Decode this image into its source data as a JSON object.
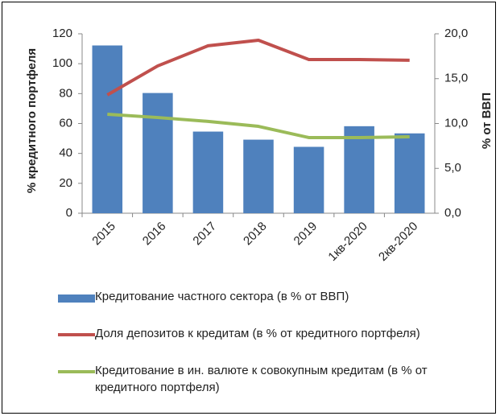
{
  "chart_data": {
    "type": "bar",
    "categories": [
      "2015",
      "2016",
      "2017",
      "2018",
      "2019",
      "1кв-2020",
      "2кв-2020"
    ],
    "series": [
      {
        "name": "Кредитование частного сектора (в % от ВВП)",
        "type": "bar",
        "axis": "y2",
        "color": "#4f81bd",
        "values": [
          18.7,
          13.4,
          9.1,
          8.2,
          7.4,
          9.7,
          8.9
        ]
      },
      {
        "name": "Доля депозитов к кредитам (в % от кредитного портфеля)",
        "type": "line",
        "axis": "y",
        "color": "#c0504d",
        "values": [
          79.1,
          98.5,
          112,
          115.7,
          102.8,
          102.8,
          102.3
        ]
      },
      {
        "name": "Кредитование в ин. валюте к совокупным кредитам (в % от кредитного портфеля)",
        "type": "line",
        "axis": "y",
        "color": "#9bbb59",
        "values": [
          66.2,
          64,
          61.4,
          58.1,
          50.6,
          50.6,
          51.1
        ]
      }
    ],
    "ylabel": "% кредитного портфеля",
    "y2label": "% от ВВП",
    "ylim": [
      0,
      120
    ],
    "yticks": [
      0,
      20,
      40,
      60,
      80,
      100,
      120
    ],
    "y2lim": [
      0,
      20
    ],
    "y2ticks": [
      {
        "value": 0,
        "label": "0,0"
      },
      {
        "value": 5,
        "label": "5,0"
      },
      {
        "value": 10,
        "label": "10,0"
      },
      {
        "value": 15,
        "label": "15,0"
      },
      {
        "value": 20,
        "label": "20,0"
      }
    ]
  }
}
